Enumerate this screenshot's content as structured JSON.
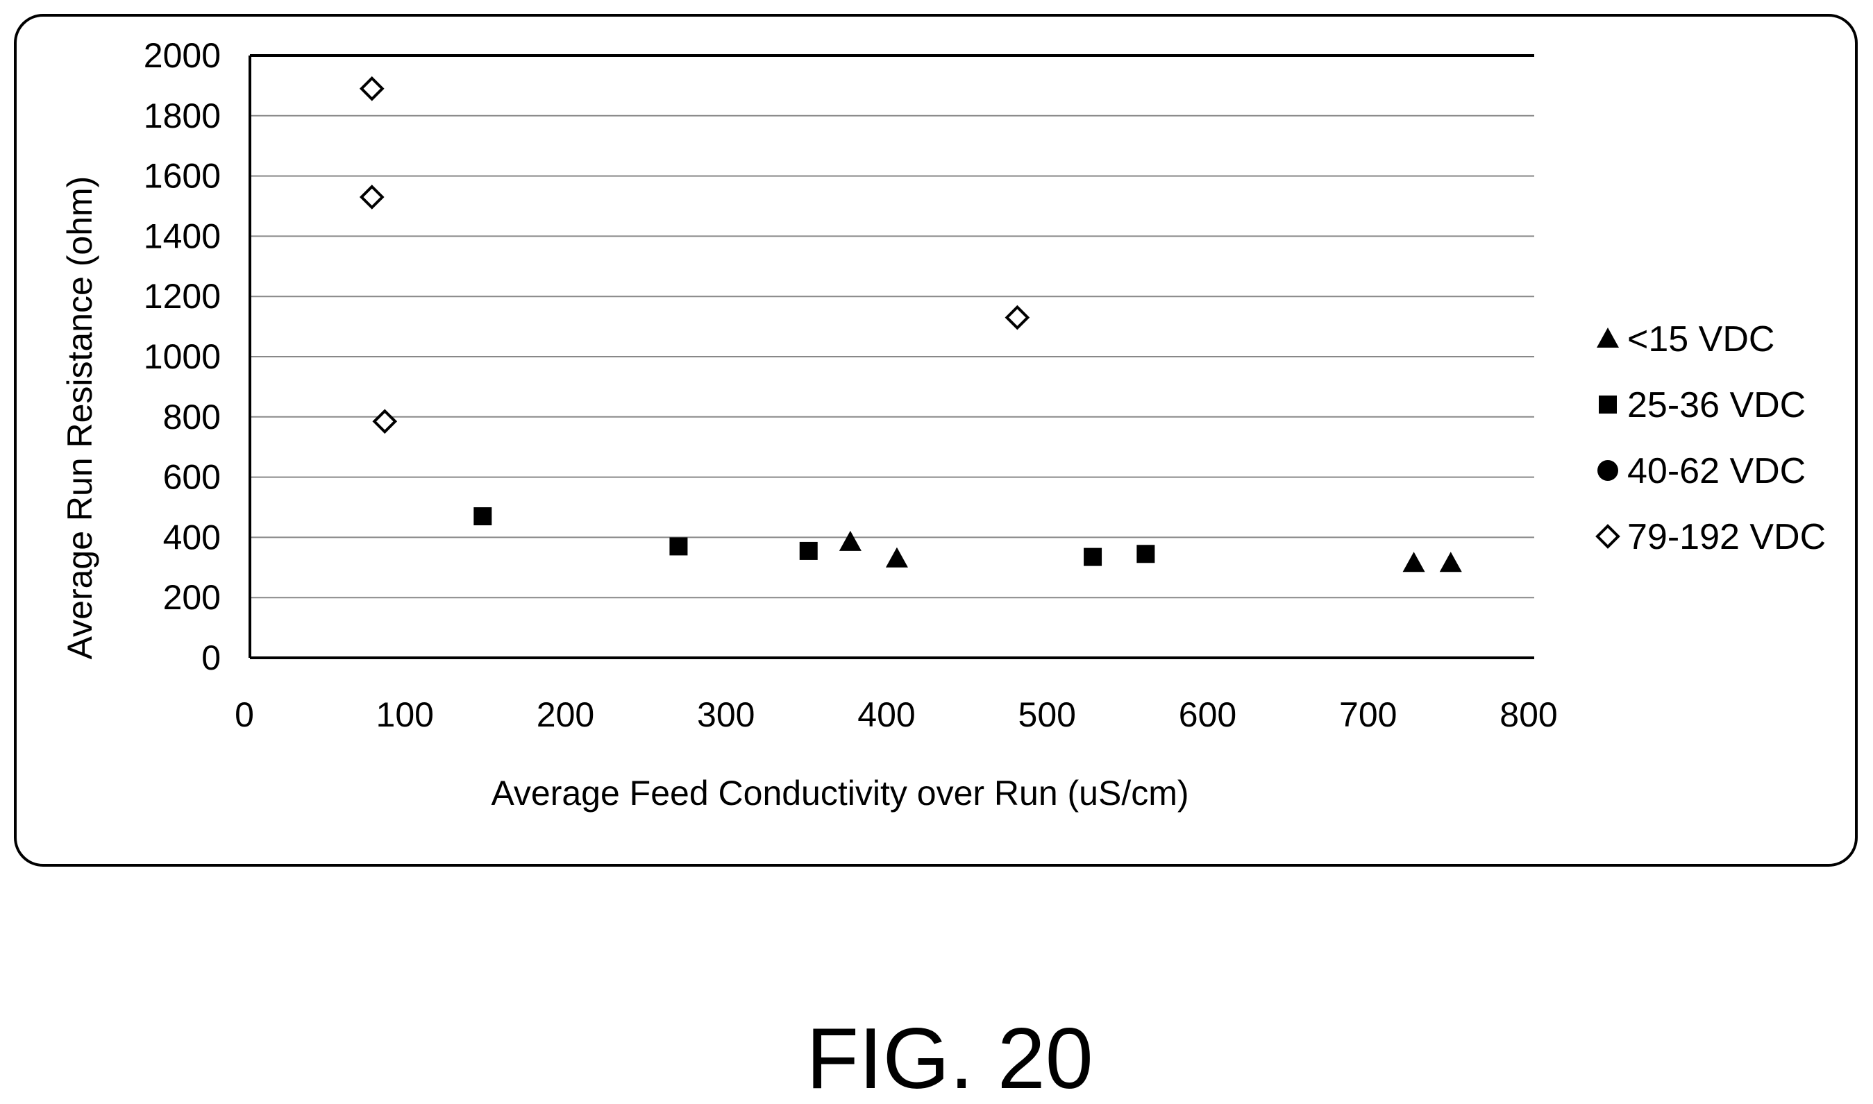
{
  "figure": {
    "caption": "FIG. 20"
  },
  "chart_data": {
    "type": "scatter",
    "xlabel": "Average Feed Conductivity over Run (uS/cm)",
    "ylabel": "Average Run Resistance (ohm)",
    "xlim": [
      0,
      800
    ],
    "ylim": [
      0,
      2000
    ],
    "x_ticks": [
      "0",
      "100",
      "200",
      "300",
      "400",
      "500",
      "600",
      "700",
      "800"
    ],
    "y_ticks": [
      "0",
      "200",
      "400",
      "600",
      "800",
      "1000",
      "1200",
      "1400",
      "1600",
      "1800",
      "2000"
    ],
    "grid": "horizontal",
    "legend_position": "right",
    "series": [
      {
        "name": "<15 VDC",
        "marker": "triangle",
        "x": [
          374,
          403,
          725,
          748
        ],
        "y": [
          385,
          330,
          315,
          315
        ]
      },
      {
        "name": "25-36 VDC",
        "marker": "square",
        "x": [
          145,
          267,
          348,
          525,
          558
        ],
        "y": [
          470,
          370,
          355,
          335,
          345
        ]
      },
      {
        "name": "40-62 VDC",
        "marker": "circle",
        "x": [],
        "y": []
      },
      {
        "name": "79-192 VDC",
        "marker": "diamond-open",
        "x": [
          76,
          76,
          84,
          478
        ],
        "y": [
          1890,
          1530,
          785,
          1130
        ]
      }
    ]
  }
}
